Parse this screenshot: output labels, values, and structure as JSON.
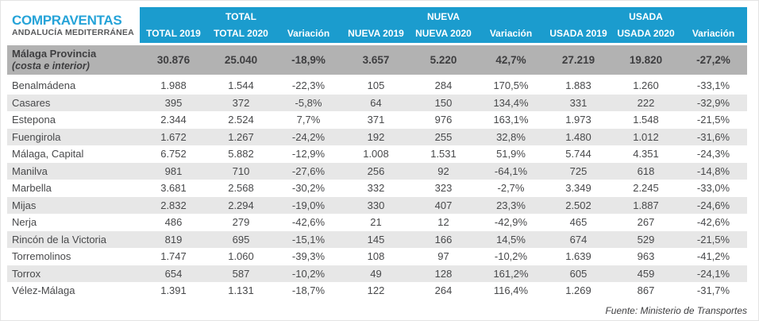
{
  "title": {
    "line1": "COMPRAVENTAS",
    "line2": "ANDALUCÍA MEDITERRÁNEA"
  },
  "colors": {
    "header_blue": "#1b9cce",
    "title_blue": "#25a3d8",
    "subtitle_gray": "#57585a",
    "summary_bg": "#b2b2b2",
    "summary_text": "#3e3e40",
    "stripe": "#e7e7e7",
    "text": "#48494b"
  },
  "table": {
    "groups": [
      {
        "label": "TOTAL"
      },
      {
        "label": "NUEVA"
      },
      {
        "label": "USADA"
      }
    ],
    "columns": [
      "TOTAL 2019",
      "TOTAL 2020",
      "Variación",
      "NUEVA 2019",
      "NUEVA 2020",
      "Variación",
      "USADA 2019",
      "USADA 2020",
      "Variación"
    ],
    "summary_row": {
      "name": "Málaga Provincia",
      "subname": "(costa e interior)",
      "values": [
        "30.876",
        "25.040",
        "-18,9%",
        "3.657",
        "5.220",
        "42,7%",
        "27.219",
        "19.820",
        "-27,2%"
      ]
    },
    "rows": [
      {
        "name": "Benalmádena",
        "values": [
          "1.988",
          "1.544",
          "-22,3%",
          "105",
          "284",
          "170,5%",
          "1.883",
          "1.260",
          "-33,1%"
        ]
      },
      {
        "name": "Casares",
        "values": [
          "395",
          "372",
          "-5,8%",
          "64",
          "150",
          "134,4%",
          "331",
          "222",
          "-32,9%"
        ]
      },
      {
        "name": "Estepona",
        "values": [
          "2.344",
          "2.524",
          "7,7%",
          "371",
          "976",
          "163,1%",
          "1.973",
          "1.548",
          "-21,5%"
        ]
      },
      {
        "name": "Fuengirola",
        "values": [
          "1.672",
          "1.267",
          "-24,2%",
          "192",
          "255",
          "32,8%",
          "1.480",
          "1.012",
          "-31,6%"
        ]
      },
      {
        "name": "Málaga, Capital",
        "values": [
          "6.752",
          "5.882",
          "-12,9%",
          "1.008",
          "1.531",
          "51,9%",
          "5.744",
          "4.351",
          "-24,3%"
        ]
      },
      {
        "name": "Manilva",
        "values": [
          "981",
          "710",
          "-27,6%",
          "256",
          "92",
          "-64,1%",
          "725",
          "618",
          "-14,8%"
        ]
      },
      {
        "name": "Marbella",
        "values": [
          "3.681",
          "2.568",
          "-30,2%",
          "332",
          "323",
          "-2,7%",
          "3.349",
          "2.245",
          "-33,0%"
        ]
      },
      {
        "name": "Mijas",
        "values": [
          "2.832",
          "2.294",
          "-19,0%",
          "330",
          "407",
          "23,3%",
          "2.502",
          "1.887",
          "-24,6%"
        ]
      },
      {
        "name": "Nerja",
        "values": [
          "486",
          "279",
          "-42,6%",
          "21",
          "12",
          "-42,9%",
          "465",
          "267",
          "-42,6%"
        ]
      },
      {
        "name": "Rincón de la Victoria",
        "values": [
          "819",
          "695",
          "-15,1%",
          "145",
          "166",
          "14,5%",
          "674",
          "529",
          "-21,5%"
        ]
      },
      {
        "name": "Torremolinos",
        "values": [
          "1.747",
          "1.060",
          "-39,3%",
          "108",
          "97",
          "-10,2%",
          "1.639",
          "963",
          "-41,2%"
        ]
      },
      {
        "name": "Torrox",
        "values": [
          "654",
          "587",
          "-10,2%",
          "49",
          "128",
          "161,2%",
          "605",
          "459",
          "-24,1%"
        ]
      },
      {
        "name": "Vélez-Málaga",
        "values": [
          "1.391",
          "1.131",
          "-18,7%",
          "122",
          "264",
          "116,4%",
          "1.269",
          "867",
          "-31,7%"
        ]
      }
    ]
  },
  "footer": {
    "source": "Fuente: Ministerio de Transportes"
  }
}
